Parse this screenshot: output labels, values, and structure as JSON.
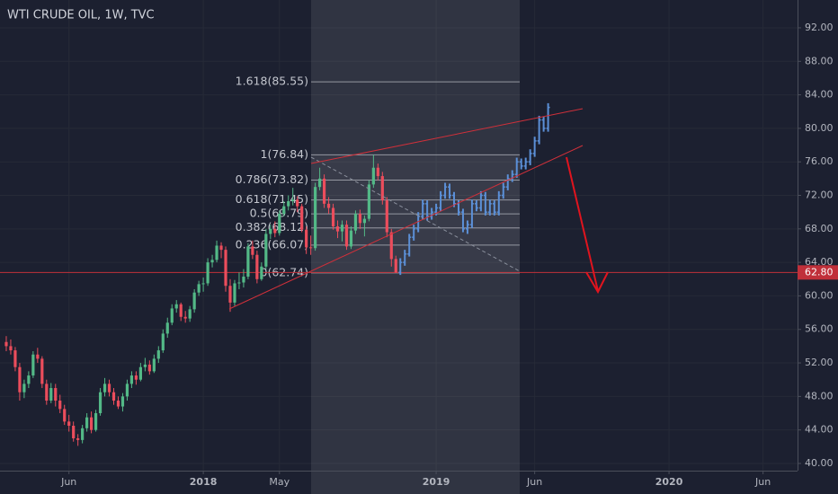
{
  "chart_data": {
    "type": "candlestick",
    "title": "WTI CRUDE OIL, 1W, TVC",
    "x": [
      -44,
      -43,
      -42,
      -41,
      -40,
      -39,
      -38,
      -37,
      -36,
      -35,
      -34,
      -33,
      -32,
      -31,
      -30,
      -29,
      -28,
      -27,
      -26,
      -25,
      -24,
      -23,
      -22,
      -21,
      -20,
      -19,
      -18,
      -17,
      -16,
      -15,
      -14,
      -13,
      -12,
      -11,
      -10,
      -9,
      -8,
      -7,
      -6,
      -5,
      -4,
      -3,
      -2,
      -1,
      0,
      1,
      2,
      3,
      4,
      5,
      6,
      7,
      8,
      9,
      10,
      11,
      12,
      13,
      14,
      15,
      16,
      17,
      18,
      19,
      20,
      21,
      22,
      23,
      24,
      25,
      26,
      27,
      28,
      29,
      30,
      31,
      32,
      33,
      34,
      35,
      36,
      37,
      38,
      39,
      40,
      41,
      42,
      43
    ],
    "ohlc": [
      [
        54.5,
        55.2,
        53.4,
        54
      ],
      [
        54,
        54.8,
        53,
        53.5
      ],
      [
        53.5,
        53.9,
        51,
        51.5
      ],
      [
        51.5,
        52,
        47.5,
        48.5
      ],
      [
        48.5,
        50,
        47.8,
        49.5
      ],
      [
        49.5,
        51,
        49,
        50.5
      ],
      [
        50.5,
        53.4,
        50.2,
        53
      ],
      [
        53,
        53.8,
        52,
        52.5
      ],
      [
        52.5,
        52.8,
        49,
        49.5
      ],
      [
        49.5,
        50,
        47,
        47.5
      ],
      [
        47.5,
        49.6,
        47.2,
        49
      ],
      [
        49,
        49.5,
        46.8,
        47.5
      ],
      [
        47.5,
        48.2,
        46,
        46.5
      ],
      [
        46.5,
        47,
        44.6,
        45
      ],
      [
        45,
        45.8,
        43.8,
        44.5
      ],
      [
        44.5,
        45,
        42.6,
        43
      ],
      [
        43,
        43.5,
        42.1,
        42.8
      ],
      [
        42.8,
        44.6,
        42.4,
        44.2
      ],
      [
        44.2,
        46,
        43.8,
        45.5
      ],
      [
        45.5,
        46.2,
        43.6,
        44
      ],
      [
        44,
        46.4,
        43.8,
        46
      ],
      [
        46,
        49,
        45.7,
        48.5
      ],
      [
        48.5,
        50.2,
        48,
        49.5
      ],
      [
        49.5,
        50,
        48,
        48.5
      ],
      [
        48.5,
        49,
        47,
        47.5
      ],
      [
        47.5,
        48,
        46.5,
        46.8
      ],
      [
        46.8,
        48.4,
        46.2,
        48
      ],
      [
        48,
        50,
        47.5,
        49.5
      ],
      [
        49.5,
        51,
        49,
        50.5
      ],
      [
        50.5,
        51,
        49.4,
        50
      ],
      [
        50,
        52,
        49.8,
        51.5
      ],
      [
        51.5,
        52.6,
        51,
        51.8
      ],
      [
        51.8,
        52.3,
        50.6,
        51
      ],
      [
        51,
        53,
        50.8,
        52.5
      ],
      [
        52.5,
        54,
        52,
        53.5
      ],
      [
        53.5,
        56,
        53.2,
        55.5
      ],
      [
        55.5,
        57.4,
        55,
        56.8
      ],
      [
        56.8,
        59,
        56.5,
        58.5
      ],
      [
        58.5,
        59.5,
        58,
        59
      ],
      [
        59,
        59.2,
        57,
        57.5
      ],
      [
        57.5,
        58.2,
        56.8,
        57.3
      ],
      [
        57.3,
        58.8,
        56.9,
        58.4
      ],
      [
        58.4,
        60.8,
        58,
        60.4
      ],
      [
        60.4,
        61.8,
        60,
        61.4
      ],
      [
        61.4,
        62.2,
        60.5,
        61.5
      ],
      [
        61.5,
        64.5,
        61.2,
        64
      ],
      [
        64,
        64.9,
        63.4,
        64.3
      ],
      [
        64.3,
        66.6,
        64,
        66
      ],
      [
        66,
        66.4,
        64.5,
        65.5
      ],
      [
        65.5,
        65.9,
        60.5,
        61.2
      ],
      [
        61.2,
        62,
        58.1,
        59.2
      ],
      [
        59.2,
        61.9,
        58.8,
        61.5
      ],
      [
        61.5,
        62.8,
        60.8,
        61.6
      ],
      [
        61.6,
        63.2,
        61,
        62.3
      ],
      [
        62.3,
        66.3,
        62,
        65.9
      ],
      [
        65.9,
        66.6,
        64.4,
        64.9
      ],
      [
        64.9,
        65.4,
        61.5,
        62
      ],
      [
        62,
        64,
        61.8,
        63.5
      ],
      [
        63.5,
        68,
        63.2,
        67.4
      ],
      [
        67.4,
        68.5,
        66.8,
        68
      ],
      [
        68,
        68.9,
        67,
        67.5
      ],
      [
        67.5,
        70.2,
        67.2,
        69.8
      ],
      [
        69.8,
        71.3,
        69.5,
        70.7
      ],
      [
        70.7,
        72,
        70.2,
        71.3
      ],
      [
        71.3,
        72.9,
        70.8,
        71.5
      ],
      [
        71.5,
        71.9,
        70,
        70.7
      ],
      [
        70.7,
        71,
        67.6,
        67.9
      ],
      [
        67.9,
        68.3,
        65,
        65.8
      ],
      [
        65.8,
        67.2,
        64.9,
        65.7
      ],
      [
        65.7,
        73.5,
        65.4,
        73
      ],
      [
        73,
        75.3,
        72.6,
        74
      ],
      [
        74,
        74.5,
        70.5,
        71
      ],
      [
        71,
        71.8,
        69.8,
        70.5
      ],
      [
        70.5,
        71,
        67.9,
        68.3
      ],
      [
        68.3,
        69,
        66.9,
        67.7
      ],
      [
        67.7,
        69,
        66.5,
        68.5
      ],
      [
        68.5,
        69,
        65.5,
        65.9
      ],
      [
        65.9,
        68.3,
        65.6,
        67.8
      ],
      [
        67.8,
        70.2,
        67.4,
        69.8
      ],
      [
        69.8,
        70.3,
        68,
        68.7
      ],
      [
        68.7,
        69.6,
        67.1,
        69.2
      ],
      [
        69.2,
        73.8,
        68.9,
        73.3
      ],
      [
        73.3,
        76.84,
        72.9,
        75.3
      ],
      [
        75.3,
        75.8,
        73.8,
        74.3
      ],
      [
        74.3,
        74.8,
        70.9,
        71.4
      ],
      [
        71.4,
        71.8,
        67,
        67.6
      ],
      [
        67.6,
        68,
        63.5,
        64.4
      ],
      [
        64.4,
        64.8,
        62.74,
        62.8
      ]
    ],
    "up_color": "#53b987",
    "down_color": "#eb4d5c",
    "projection_x": [
      44,
      45,
      46,
      47,
      48,
      49,
      50,
      51,
      52,
      53,
      54,
      55,
      56,
      57,
      58,
      59,
      60,
      61,
      62,
      63,
      64,
      65,
      66,
      67,
      68,
      69,
      70,
      71,
      72,
      73,
      74,
      75,
      76,
      77
    ],
    "projection_ohlc": [
      [
        62.8,
        64.5,
        62.5,
        64
      ],
      [
        64,
        65.5,
        63.6,
        65
      ],
      [
        65,
        67.4,
        64.7,
        67
      ],
      [
        67,
        68.5,
        66.6,
        68
      ],
      [
        68,
        70,
        67.6,
        69.5
      ],
      [
        69.5,
        71.5,
        69.1,
        71
      ],
      [
        71,
        71.4,
        69,
        69.5
      ],
      [
        69.5,
        70.5,
        69.1,
        70
      ],
      [
        70,
        71,
        69.6,
        70.5
      ],
      [
        70.5,
        72.5,
        70.1,
        72
      ],
      [
        72,
        73.5,
        71.6,
        73
      ],
      [
        73,
        73.4,
        71.6,
        72
      ],
      [
        72,
        72.4,
        70.6,
        71
      ],
      [
        71,
        71.4,
        69.6,
        70
      ],
      [
        70,
        70.4,
        67.6,
        68
      ],
      [
        68,
        69,
        67.4,
        68.5
      ],
      [
        68.5,
        71.5,
        68.1,
        71
      ],
      [
        71,
        71.4,
        70.1,
        70.5
      ],
      [
        70.5,
        72.5,
        70.1,
        72
      ],
      [
        72,
        72.4,
        69.6,
        70
      ],
      [
        70,
        71.5,
        69.6,
        71
      ],
      [
        71,
        71.4,
        69.6,
        70
      ],
      [
        70,
        72.5,
        69.6,
        72
      ],
      [
        72,
        73.5,
        71.6,
        73
      ],
      [
        73,
        74.5,
        72.6,
        74
      ],
      [
        74,
        75,
        73.6,
        74.5
      ],
      [
        74.5,
        76.5,
        74.1,
        76
      ],
      [
        76,
        76.4,
        75.1,
        75.5
      ],
      [
        75.5,
        76.5,
        75.1,
        76
      ],
      [
        76,
        77.5,
        75.6,
        77
      ],
      [
        77,
        79,
        76.6,
        78.5
      ],
      [
        78.5,
        81.5,
        78.1,
        81
      ],
      [
        81,
        81.4,
        79.6,
        80
      ],
      [
        80,
        83,
        79.6,
        82.5
      ]
    ],
    "projection_color": "#5b8fd6",
    "fib_levels": [
      {
        "value": 85.55,
        "label": "1.618(85.55)"
      },
      {
        "value": 76.84,
        "label": "1(76.84)"
      },
      {
        "value": 73.82,
        "label": "0.786(73.82)"
      },
      {
        "value": 71.45,
        "label": "0.618(71.45)"
      },
      {
        "value": 69.79,
        "label": "0.5(69.79)"
      },
      {
        "value": 68.12,
        "label": "0.382(68.12)"
      },
      {
        "value": 66.07,
        "label": "0.236(66.07)"
      },
      {
        "value": 62.74,
        "label": "0(62.74)"
      }
    ],
    "last_price": {
      "value": 62.8,
      "label": "62.80"
    },
    "xlim": [
      -45.4,
      132.7
    ],
    "ylim": [
      39.14,
      95.32
    ],
    "xticks": [
      {
        "value": -30,
        "label": "Jun"
      },
      {
        "value": 0,
        "label": "2018"
      },
      {
        "value": 17,
        "label": "May"
      },
      {
        "value": 52,
        "label": "2019"
      },
      {
        "value": 74,
        "label": "Jun"
      },
      {
        "value": 104,
        "label": "2020"
      },
      {
        "value": 125,
        "label": "Jun"
      }
    ],
    "yticks": [
      {
        "value": 40,
        "label": "40.00"
      },
      {
        "value": 44,
        "label": "44.00"
      },
      {
        "value": 48,
        "label": "48.00"
      },
      {
        "value": 52,
        "label": "52.00"
      },
      {
        "value": 56,
        "label": "56.00"
      },
      {
        "value": 60,
        "label": "60.00"
      },
      {
        "value": 64,
        "label": "64.00"
      },
      {
        "value": 68,
        "label": "68.00"
      },
      {
        "value": 72,
        "label": "72.00"
      },
      {
        "value": 76,
        "label": "76.00"
      },
      {
        "value": 80,
        "label": "80.00"
      },
      {
        "value": 84,
        "label": "84.00"
      },
      {
        "value": 88,
        "label": "88.00"
      },
      {
        "value": 92,
        "label": "92.00"
      }
    ],
    "grid": true
  }
}
